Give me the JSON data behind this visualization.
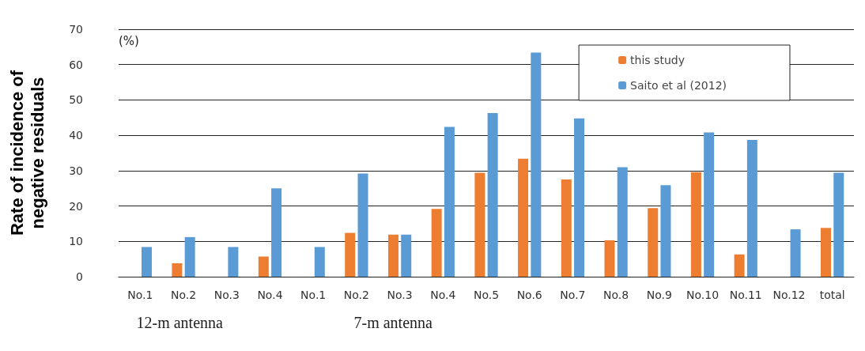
{
  "chart_data": {
    "type": "bar",
    "ylabel": "Rate of incidence of\nnegative residuals",
    "categories": [
      "No.1",
      "No.2",
      "No.3",
      "No.4",
      "No.1",
      "No.2",
      "No.3",
      "No.4",
      "No.5",
      "No.6",
      "No.7",
      "No.8",
      "No.9",
      "No.10",
      "No.11",
      "No.12",
      "total"
    ],
    "series": [
      {
        "name": "this study",
        "color": "#ed7d31",
        "values": [
          0,
          3.8,
          0,
          5.7,
          0,
          12.4,
          11.9,
          19.2,
          29.4,
          33.4,
          27.5,
          10.3,
          19.4,
          29.6,
          6.3,
          0,
          13.8
        ]
      },
      {
        "name": "Saito et al (2012)",
        "color": "#5b9bd5",
        "values": [
          8.4,
          11.2,
          8.4,
          25.0,
          8.4,
          29.2,
          11.9,
          42.4,
          46.3,
          63.4,
          44.8,
          31.0,
          25.9,
          40.8,
          38.7,
          13.4,
          29.4
        ]
      }
    ],
    "ylim": [
      0,
      70
    ],
    "yticks": [
      0,
      10,
      20,
      30,
      40,
      50,
      60,
      70
    ],
    "grid": "y",
    "legend": "top right",
    "annotations": [
      "(%)",
      "12-m antenna",
      "7-m antenna"
    ]
  }
}
